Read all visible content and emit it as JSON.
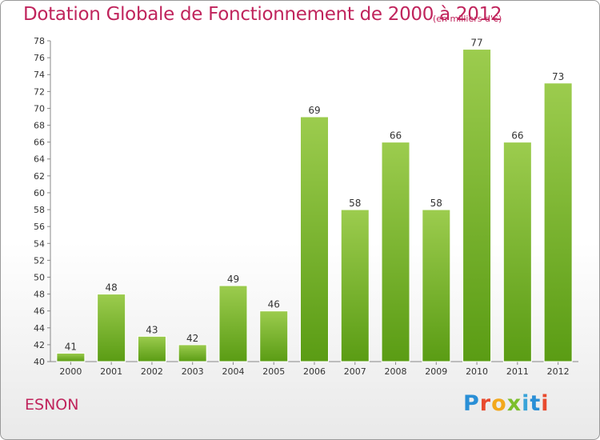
{
  "title": "Dotation Globale de Fonctionnement de 2000 à 2012",
  "subtitle": "(en milliers d'€)",
  "commune": "ESNON",
  "logo": "Proxiti",
  "colors": {
    "bar_top": "#9ccc4e",
    "bar_bottom": "#5a9c14",
    "title": "#c0245c"
  },
  "chart_data": {
    "type": "bar",
    "categories": [
      "2000",
      "2001",
      "2002",
      "2003",
      "2004",
      "2005",
      "2006",
      "2007",
      "2008",
      "2009",
      "2010",
      "2011",
      "2012"
    ],
    "values": [
      41,
      48,
      43,
      42,
      49,
      46,
      69,
      58,
      66,
      58,
      77,
      66,
      73
    ],
    "title": "Dotation Globale de Fonctionnement de 2000 à 2012",
    "ylabel": "",
    "xlabel": "",
    "ylim": [
      40,
      78
    ],
    "ytick_step": 2,
    "grid": false,
    "data_labels": true
  }
}
